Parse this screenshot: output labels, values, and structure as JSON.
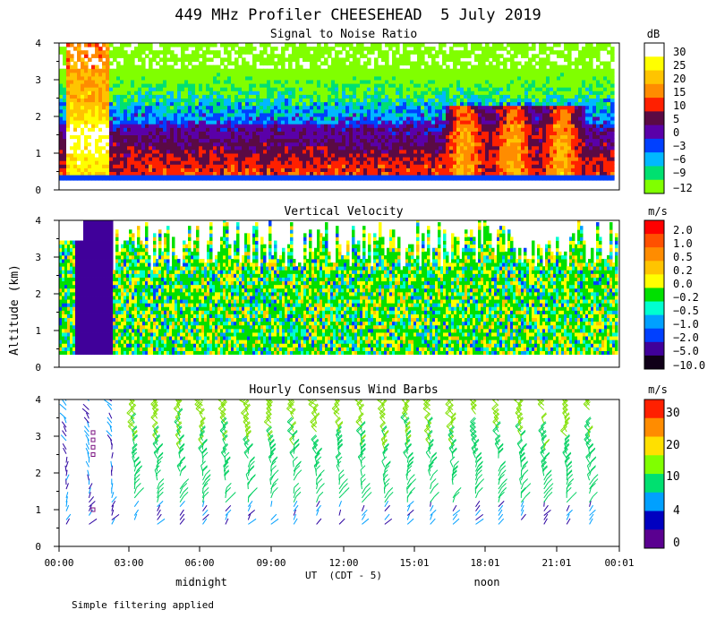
{
  "title": "449 MHz Profiler CHEESEHEAD  5 July 2019",
  "ylabel": "Altitude (km)",
  "xlabel": "UT  (CDT - 5)",
  "time_labels": [
    "00:00",
    "03:00",
    "06:00",
    "09:00",
    "12:00",
    "15:01",
    "18:01",
    "21:01",
    "00:01"
  ],
  "time_markers": [
    "midnight",
    "noon"
  ],
  "footnote": "Simple filtering applied",
  "chart_data": [
    {
      "type": "heatmap",
      "title": "Signal to Noise Ratio",
      "xlabel": "UT  (CDT - 5)",
      "ylabel": "Altitude (km)",
      "ylim": [
        0,
        4
      ],
      "yticks": [
        "0",
        "1",
        "2",
        "3",
        "4"
      ],
      "colorbar_unit": "dB",
      "colorbar_labels": [
        "30",
        "25",
        "20",
        "15",
        "10",
        "5",
        "0",
        "−3",
        "−6",
        "−9",
        "−12"
      ],
      "colorbar_colors": [
        "#ffffff",
        "#ffff00",
        "#ffc400",
        "#ff8c00",
        "#ff2000",
        "#5a0a44",
        "#5a00a8",
        "#0040ff",
        "#00b8ff",
        "#00e070",
        "#80ff00"
      ]
    },
    {
      "type": "heatmap",
      "title": "Vertical Velocity",
      "xlabel": "UT  (CDT - 5)",
      "ylabel": "Altitude (km)",
      "ylim": [
        0,
        4
      ],
      "yticks": [
        "0",
        "1",
        "2",
        "3",
        "4"
      ],
      "colorbar_unit": "m/s",
      "colorbar_labels": [
        "2.0",
        "1.0",
        "0.5",
        "0.2",
        "0.0",
        "−0.2",
        "−0.5",
        "−1.0",
        "−2.0",
        "−5.0",
        "−10.0"
      ],
      "colorbar_colors": [
        "#ff0000",
        "#ff5000",
        "#ff8c00",
        "#ffc400",
        "#ffff00",
        "#00e000",
        "#00ffd0",
        "#00a0ff",
        "#0040ff",
        "#40009a",
        "#100018"
      ]
    },
    {
      "type": "scatter",
      "title": "Hourly Consensus Wind Barbs",
      "xlabel": "UT  (CDT - 5)",
      "ylabel": "Altitude (km)",
      "ylim": [
        0,
        4
      ],
      "yticks": [
        "0",
        "1",
        "2",
        "3",
        "4"
      ],
      "colorbar_unit": "m/s",
      "colorbar_labels": [
        "30",
        "20",
        "10",
        "4",
        "0"
      ],
      "colorbar_colors": [
        "#ff2000",
        "#ff8c00",
        "#ffe000",
        "#80ff00",
        "#00e070",
        "#00a0ff",
        "#0000c0",
        "#5a0090"
      ]
    }
  ]
}
